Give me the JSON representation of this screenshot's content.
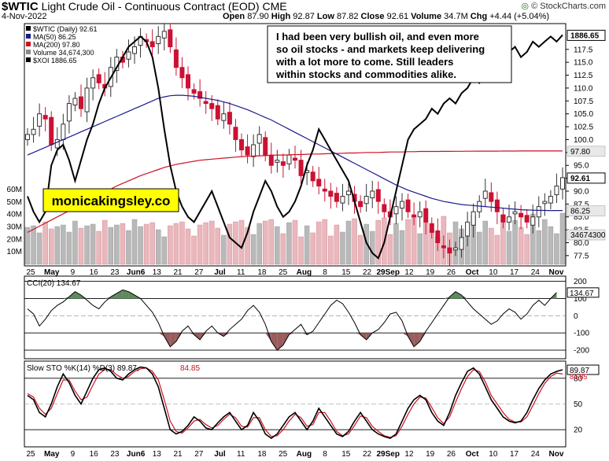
{
  "header": {
    "symbol": "$WTIC",
    "name": "Light Crude Oil - Continuous Contract (EOD)",
    "exchange": "CME",
    "date": "4-Nov-2022",
    "open_label": "Open",
    "open": "87.90",
    "high_label": "High",
    "high": "92.87",
    "low_label": "Low",
    "low": "87.82",
    "close_label": "Close",
    "close": "92.61",
    "volume_label": "Volume",
    "volume": "34.7M",
    "chg_label": "Chg",
    "chg": "+4.44 (+5.04%)",
    "copyright": "© StockCharts.com"
  },
  "chart_data": [
    {
      "type": "candlestick",
      "legend": [
        {
          "label": "$WTIC (Daily) 92.61",
          "color": "#000000"
        },
        {
          "label": "MA(50) 86.25",
          "color": "#1a1a8c"
        },
        {
          "label": "MA(200) 97.80",
          "color": "#cc1122"
        },
        {
          "label": "Volume 34,674,300",
          "color": "#888888"
        },
        {
          "label": "$XOI 1886.65",
          "color": "#000000"
        }
      ],
      "annotation": "I had been very bullish oil, and even more so oil stocks - and markets keep delivering with a lot more to come. Still leaders within stocks and commodities alike.",
      "watermark": "monicakingsley.co",
      "y_ticks": [
        77.5,
        80.0,
        82.5,
        85.0,
        87.5,
        90.0,
        92.5,
        95.0,
        97.5,
        100.0,
        102.5,
        105.0,
        107.5,
        110.0,
        112.5,
        115.0,
        117.5
      ],
      "ylim": [
        75.5,
        122.5
      ],
      "volume_ticks": [
        "10M",
        "20M",
        "30M",
        "40M",
        "50M",
        "60M"
      ],
      "price_labels": [
        {
          "value": "1886.65",
          "y": 120.3,
          "style": "box"
        },
        {
          "value": "97.80",
          "y": 97.8,
          "style": "pale"
        },
        {
          "value": "92.61",
          "y": 92.61,
          "style": "box"
        },
        {
          "value": "86.25",
          "y": 86.25,
          "style": "pale"
        },
        {
          "value": "34674300",
          "y": 81.6,
          "style": "pale"
        }
      ],
      "x_labels": [
        "25",
        "May",
        "9",
        "16",
        "23",
        "Jun6",
        "13",
        "21",
        "27",
        "Jul",
        "11",
        "18",
        "25",
        "Aug",
        "8",
        "15",
        "22",
        "29Sep",
        "12",
        "19",
        "26",
        "Oct",
        "10",
        "17",
        "24",
        "Nov"
      ],
      "wtic_close": [
        101,
        102,
        105,
        104,
        99,
        100,
        103,
        107,
        108,
        106,
        110,
        112,
        111,
        110,
        114,
        116,
        115,
        117,
        118,
        120,
        119,
        118,
        120,
        121,
        118,
        114,
        112,
        110,
        109,
        108,
        107,
        106,
        104,
        105,
        103,
        100,
        98,
        97,
        99,
        101,
        97,
        95,
        96,
        95,
        97,
        96,
        93,
        94,
        92,
        91,
        90,
        89,
        88,
        89,
        90,
        88,
        87,
        89,
        90,
        88,
        86,
        85,
        87,
        88,
        86,
        85,
        86,
        84,
        82,
        80,
        79,
        78,
        79,
        81,
        84,
        86,
        88,
        90,
        88,
        86,
        84,
        85,
        86,
        85,
        84,
        85,
        87,
        88,
        89,
        91,
        92.61
      ],
      "ma50": [
        97,
        97.5,
        98,
        98.5,
        99,
        99.5,
        100,
        100.5,
        101,
        101.5,
        102,
        102.5,
        103,
        103.5,
        104,
        104.5,
        105,
        105.5,
        106,
        106.5,
        107,
        107.5,
        108,
        108.3,
        108.5,
        108.6,
        108.6,
        108.5,
        108.4,
        108.2,
        108,
        107.8,
        107.6,
        107.3,
        107,
        106.6,
        106.2,
        105.8,
        105.3,
        104.8,
        104.3,
        103.8,
        103.2,
        102.6,
        102,
        101.4,
        100.8,
        100.2,
        99.6,
        99,
        98.4,
        97.8,
        97.2,
        96.6,
        96,
        95.4,
        94.8,
        94.2,
        93.6,
        93,
        92.4,
        91.8,
        91.2,
        90.7,
        90.2,
        89.8,
        89.4,
        89,
        88.6,
        88.3,
        88,
        87.8,
        87.6,
        87.4,
        87.3,
        87.2,
        87.1,
        87,
        86.9,
        86.8,
        86.7,
        86.6,
        86.5,
        86.4,
        86.35,
        86.3,
        86.28,
        86.26,
        86.25,
        86.25,
        86.25
      ],
      "ma200": [
        82,
        82.6,
        83.2,
        83.8,
        84.4,
        85,
        85.6,
        86.2,
        86.8,
        87.4,
        88,
        88.6,
        89.2,
        89.8,
        90.4,
        91,
        91.5,
        92,
        92.5,
        93,
        93.4,
        93.8,
        94.2,
        94.6,
        94.9,
        95.2,
        95.4,
        95.6,
        95.8,
        96,
        96.1,
        96.2,
        96.3,
        96.4,
        96.5,
        96.6,
        96.7,
        96.75,
        96.8,
        96.85,
        96.9,
        96.95,
        97,
        97,
        97.05,
        97.1,
        97.1,
        97.15,
        97.2,
        97.2,
        97.25,
        97.3,
        97.3,
        97.35,
        97.4,
        97.4,
        97.45,
        97.5,
        97.5,
        97.5,
        97.55,
        97.6,
        97.6,
        97.6,
        97.65,
        97.65,
        97.7,
        97.7,
        97.7,
        97.7,
        97.72,
        97.72,
        97.74,
        97.74,
        97.75,
        97.75,
        97.76,
        97.76,
        97.77,
        97.77,
        97.78,
        97.78,
        97.78,
        97.79,
        97.79,
        97.79,
        97.8,
        97.8,
        97.8,
        97.8,
        97.8
      ],
      "xoi": [
        89,
        86,
        84,
        86,
        95,
        98,
        99,
        96,
        92,
        96,
        100,
        103,
        107,
        110,
        112,
        114,
        116,
        118,
        119,
        120,
        119,
        116,
        110,
        102,
        95,
        90,
        87,
        85,
        84,
        86,
        88,
        90,
        87,
        84,
        81,
        80,
        79,
        82,
        86,
        89,
        92,
        90,
        87,
        85,
        86,
        88,
        91,
        95,
        98,
        102,
        100,
        98,
        96,
        94,
        92,
        88,
        84,
        80,
        78,
        77,
        80,
        85,
        90,
        95,
        100,
        102,
        103,
        104,
        106,
        105,
        107,
        108,
        107,
        109,
        110,
        112,
        111,
        113,
        114,
        116,
        115,
        117,
        118,
        116,
        117,
        119,
        118,
        119,
        120,
        119,
        120.3
      ]
    },
    {
      "type": "line",
      "title": "CCI(20) 134.67",
      "value_label": "134.67",
      "y_ticks": [
        200,
        100,
        0,
        -100,
        -200
      ],
      "ylim": [
        -250,
        230
      ],
      "series": [
        {
          "values": [
            40,
            10,
            -60,
            -20,
            30,
            60,
            80,
            110,
            140,
            120,
            90,
            60,
            40,
            80,
            110,
            130,
            150,
            140,
            120,
            100,
            60,
            20,
            -40,
            -120,
            -180,
            -150,
            -90,
            -60,
            -110,
            -140,
            -90,
            -60,
            -100,
            -120,
            -80,
            -50,
            -20,
            30,
            60,
            20,
            -50,
            -150,
            -200,
            -170,
            -110,
            -80,
            -50,
            -110,
            -90,
            -40,
            10,
            60,
            90,
            70,
            20,
            -40,
            -110,
            -140,
            -100,
            -80,
            -40,
            10,
            20,
            -30,
            -120,
            -180,
            -150,
            -90,
            -40,
            10,
            60,
            110,
            140,
            120,
            80,
            40,
            10,
            -20,
            -50,
            -30,
            10,
            40,
            20,
            -20,
            10,
            60,
            90,
            60,
            100,
            134.67
          ]
        }
      ]
    },
    {
      "type": "line",
      "title": "Slow STO %K(14) %D(3) 89.87, 84.85",
      "title_parts": [
        "Slow STO %K(14) %D(3) 89.87,",
        "84.85"
      ],
      "value_labels": [
        "89.87",
        "84.85"
      ],
      "y_ticks": [
        80,
        50,
        20
      ],
      "ylim": [
        0,
        100
      ],
      "series": [
        {
          "name": "%K(14)",
          "values": [
            60,
            55,
            40,
            35,
            50,
            70,
            85,
            75,
            60,
            50,
            65,
            80,
            90,
            92,
            88,
            80,
            78,
            85,
            90,
            93,
            92,
            85,
            70,
            45,
            20,
            15,
            18,
            25,
            35,
            30,
            22,
            20,
            28,
            35,
            40,
            30,
            20,
            25,
            40,
            30,
            15,
            10,
            15,
            25,
            35,
            40,
            30,
            20,
            30,
            45,
            35,
            25,
            15,
            12,
            18,
            30,
            40,
            30,
            20,
            15,
            12,
            10,
            15,
            30,
            45,
            55,
            60,
            55,
            40,
            30,
            25,
            40,
            60,
            75,
            88,
            92,
            85,
            70,
            55,
            45,
            35,
            30,
            28,
            30,
            40,
            55,
            68,
            78,
            85,
            88,
            89.87
          ]
        },
        {
          "name": "%D(3)",
          "values": [
            62,
            58,
            45,
            38,
            45,
            62,
            78,
            78,
            65,
            55,
            58,
            72,
            85,
            90,
            90,
            84,
            80,
            82,
            88,
            91,
            92,
            88,
            78,
            55,
            30,
            18,
            16,
            22,
            30,
            32,
            26,
            22,
            25,
            32,
            38,
            34,
            24,
            23,
            34,
            34,
            20,
            12,
            13,
            20,
            30,
            38,
            34,
            24,
            26,
            40,
            40,
            30,
            18,
            13,
            15,
            25,
            36,
            34,
            24,
            18,
            13,
            11,
            13,
            24,
            38,
            50,
            58,
            57,
            46,
            34,
            27,
            35,
            52,
            68,
            82,
            90,
            88,
            76,
            60,
            50,
            40,
            32,
            29,
            29,
            35,
            48,
            62,
            74,
            82,
            86,
            84.85
          ]
        }
      ]
    }
  ],
  "colors": {
    "up_candle": "#333333",
    "down_candle": "#cc1133",
    "ma50": "#1a1a8c",
    "ma200": "#cc1122",
    "cci_pos_fill": "#5e8a5e",
    "cci_neg_fill": "#9a5c5c",
    "vol_up": "#b9b9b9",
    "vol_down": "#e9b8bd",
    "watermark_bg": "#ffff00",
    "sto_d": "#cc1122"
  },
  "icons": [
    "stockcharts-logo-icon"
  ]
}
